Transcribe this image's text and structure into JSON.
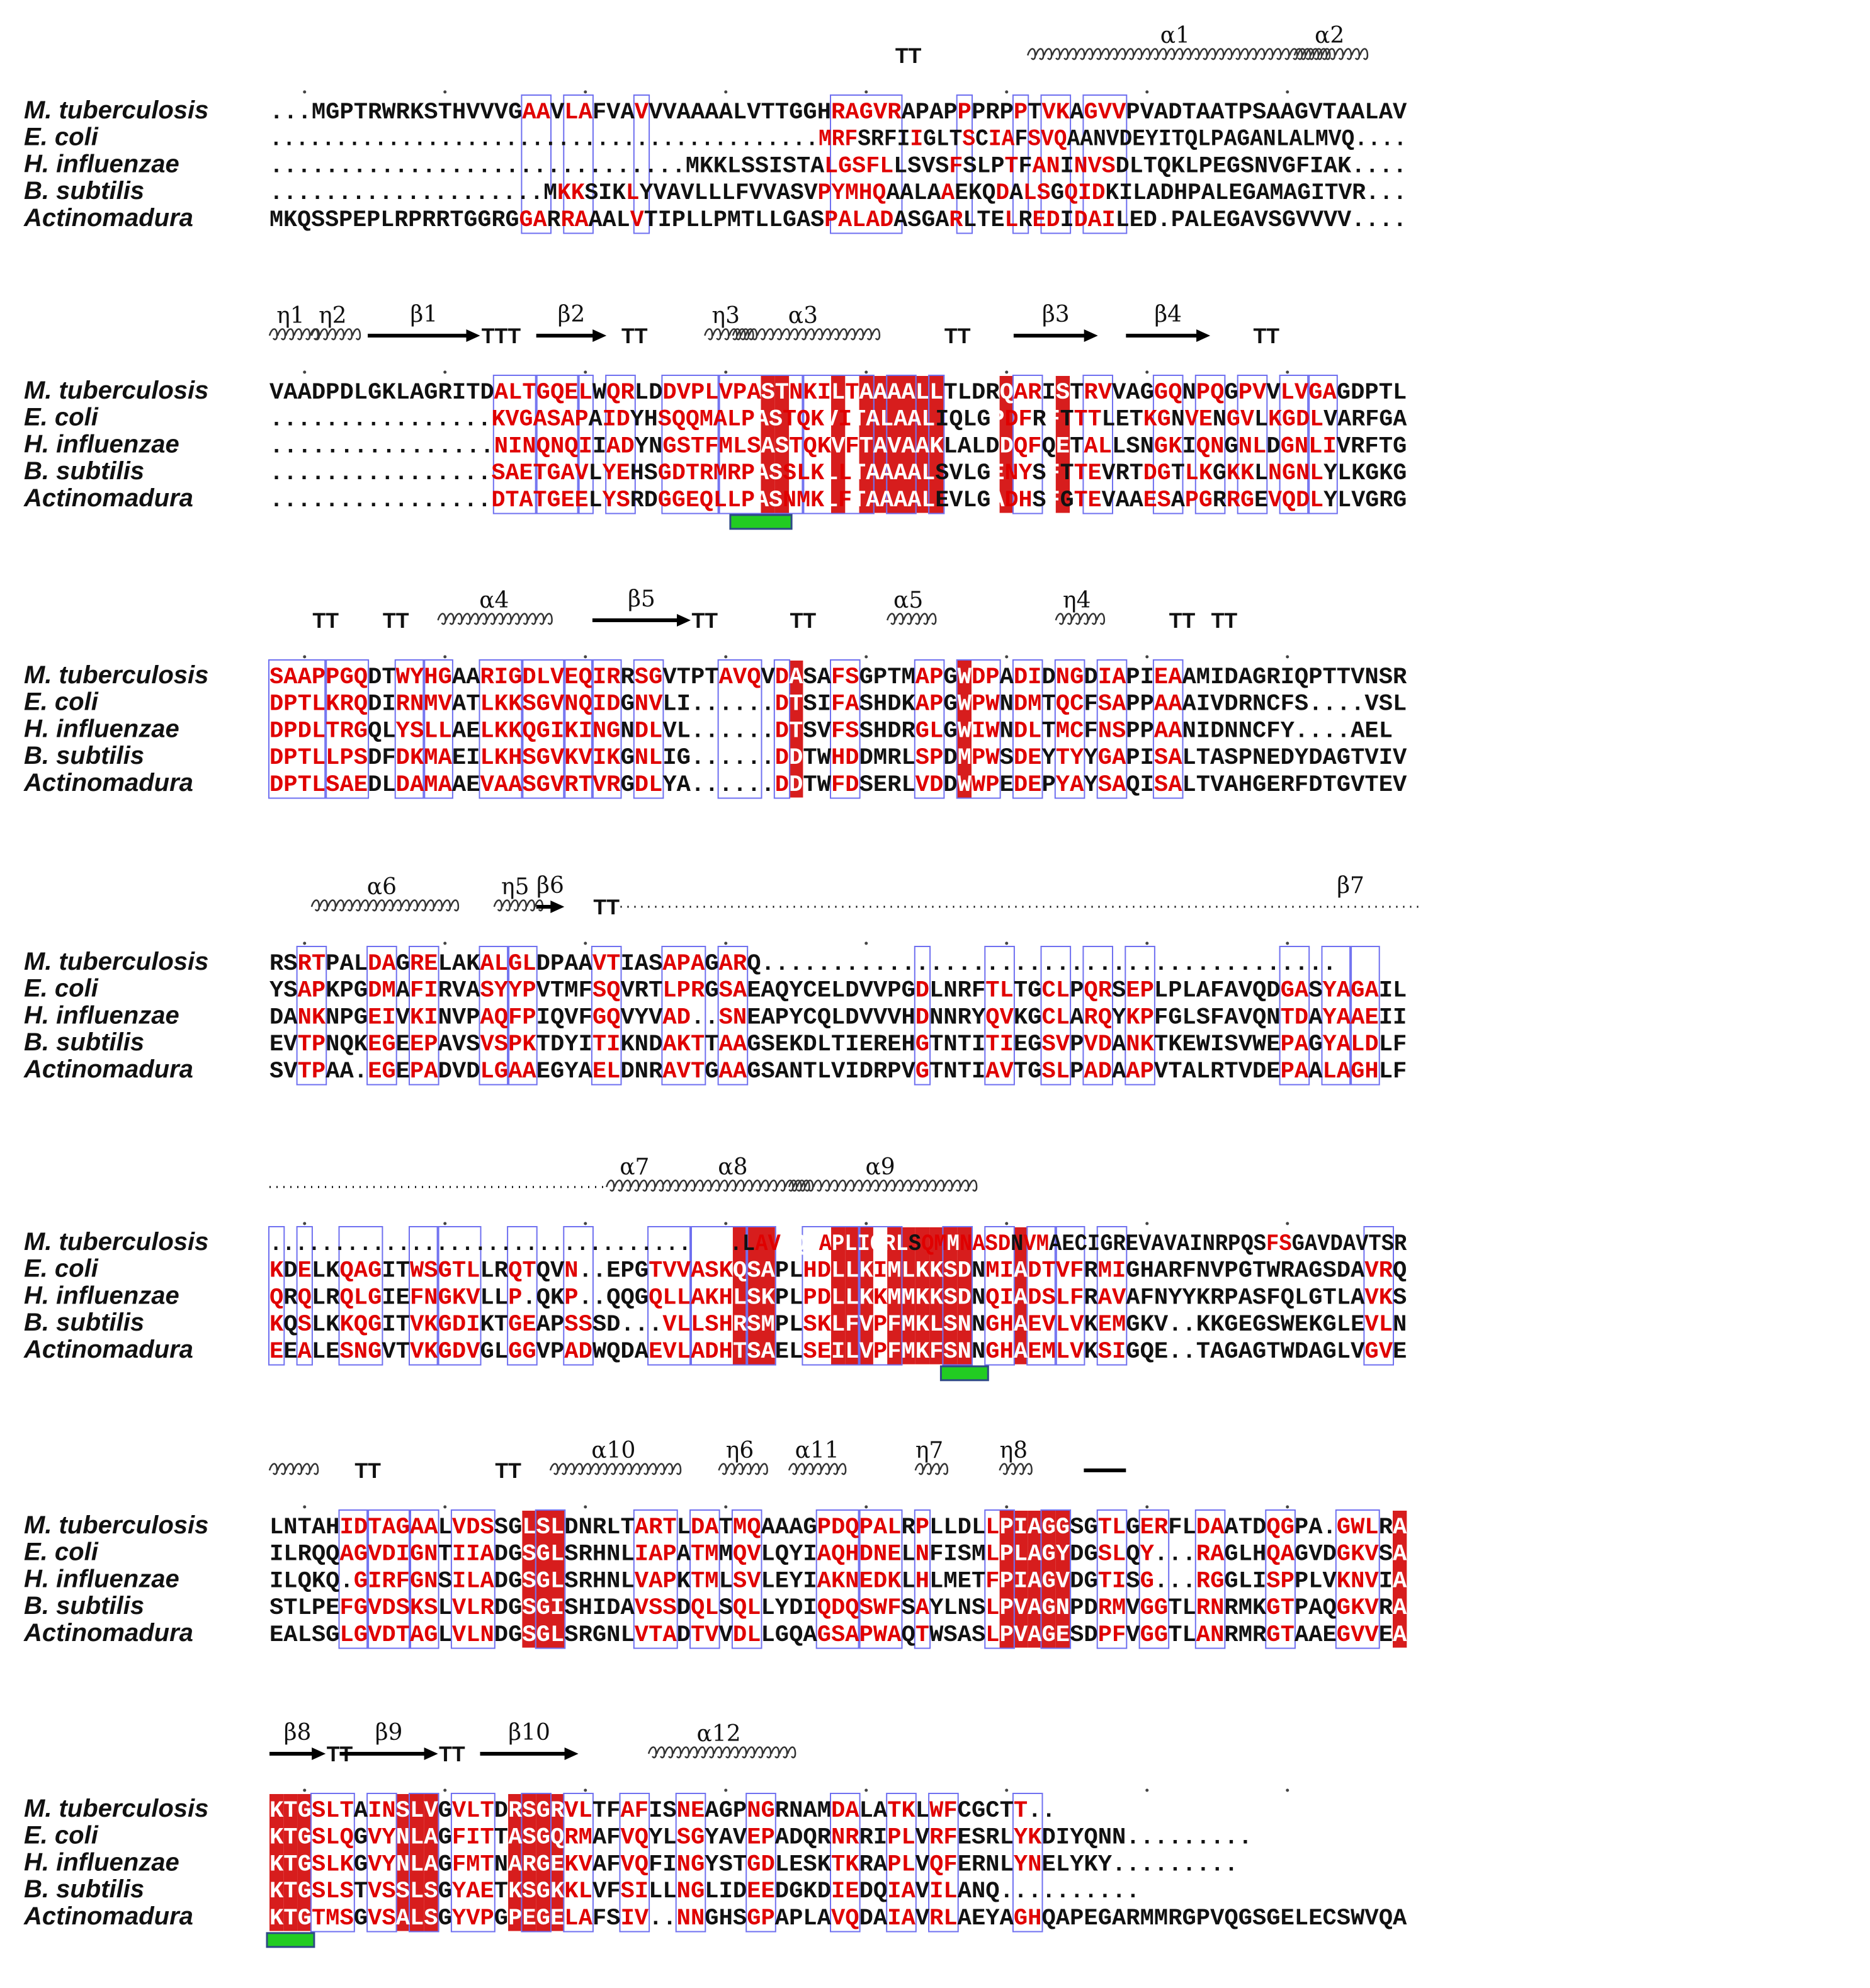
{
  "species": [
    "M. tuberculosis",
    "E. coli",
    "H. influenzae",
    "B. subtilis",
    "Actinomadura"
  ],
  "colors": {
    "identical_fill": "#d71d1d",
    "identical_text": "#ffffff",
    "similar_text": "#e00000",
    "normal_text": "#111111",
    "box": "#6f70f0",
    "motif_bar_fill": "#22cc22",
    "motif_bar_stroke": "#2e4a86"
  },
  "blocks": [
    {
      "sequences": [
        "...MGPTRWRKSTHVVVGAAVLAFVAVVVAAAALVTTGGHRAGVRAPAPPPRPPTVKAGVVPVADTAATPSAAGVTAALAV",
        "..........................................MRFSRFIIGLTSCIAFSVQAANVDEYITQLPAGANLALMVQ....",
        "..............................MKKLSSISTALGSFLLSVSFSLPTFANINVSDLTQKLPEGSNVGFIAK....",
        "....................MKKSIKLYVAVLLLFVVASVPYMHQAALAAEKQDALSGQIDKILADHPALEGAMAGITVR...",
        "MKQSSPEPLRPRRTGGRGGARRAAALVTIPLLPMTLLGASPALADASGARLTELREDIDAILED.PALEGAVSGVVVV...."
      ],
      "ss": [
        {
          "type": "helix",
          "label": "α1"
        },
        {
          "type": "turn",
          "label": "TT"
        },
        {
          "type": "helix",
          "label": "α2"
        }
      ]
    },
    {
      "sequences": [
        "VAADPDLGKLAGRITDALTGQELWQRLDDVPLVPASTNKILTAAAALLTLDRQARISTRVVAGGQNPQGPVVLVGAGDPTL",
        "................KVGASAPAIDYHSQQMALPASTQKVITALAALIQLGPDFRFTTTLETKGNVENGVLKGDLVARFGA",
        "................NINQNQIIADYNGSTFMLSASTQKVFTAVAAKLALDDQFQETALLSNGKIQNGNLDGNLIVRFTG",
        "................SAETGAVLYEHSGDTRMRPASSLKLLTAAAALSVLGENYSFTTEVRTDGTLKGKKLNGNLYLKGKG",
        "................DTATGEELYSRDGGEQLLPASNMKLFTAAAALEVLGADHSFGTEVAAESAPGRRGEVQDLYLVGRG"
      ],
      "ss": [
        {
          "type": "helix",
          "label": "η1"
        },
        {
          "type": "helix",
          "label": "η2"
        },
        {
          "type": "strand",
          "label": "β1"
        },
        {
          "type": "turn",
          "label": "TTT"
        },
        {
          "type": "strand",
          "label": "β2"
        },
        {
          "type": "turn",
          "label": "TT"
        },
        {
          "type": "helix",
          "label": "η3"
        },
        {
          "type": "helix",
          "label": "α3"
        },
        {
          "type": "turn",
          "label": "TT"
        },
        {
          "type": "strand",
          "label": "β3"
        },
        {
          "type": "strand",
          "label": "β4"
        },
        {
          "type": "turn",
          "label": "TT"
        }
      ]
    },
    {
      "sequences": [
        "SAAPPGQDTWYHGAARIGDLVEQIRRSGVTPTAVQVDASAFSGPTMAPGWDPADIDNGDIAPIEAAMIDAGRIQPTTVNSR",
        "DPTLKRQDIRNMVATLKKSGVNQIDGNVLI......DTSIFASHDKAPGWPWNDMTQCFSAPPAAAIVDRNCFS....VSL",
        "DPDLTRGQLYSLLAELKKQGIKINGNDLVL......DTSVFSSHDRGLGWIWNDLTMCFNSPPAANIDNNCFY....AEL",
        "DPTLLPSDFDKMAEILKHSGVKVIKGNLIG......DDTWHDDMRLSPDMPWSDEYTYYGAPISALTASPNEDYDAGTVIV",
        "DPTLSAEDLDAMAAEVAASGVRTVRGDLYA......DDTWFDSERLVDDWWPEDEPYAYSAQISALTVAHGERFDTGVTEV"
      ],
      "ss": [
        {
          "type": "turn",
          "label": "TT"
        },
        {
          "type": "turn",
          "label": "TT"
        },
        {
          "type": "helix",
          "label": "α4"
        },
        {
          "type": "strand",
          "label": "β5"
        },
        {
          "type": "turn",
          "label": "TT"
        },
        {
          "type": "turn",
          "label": "TT"
        },
        {
          "type": "helix",
          "label": "α5"
        },
        {
          "type": "helix",
          "label": "η4"
        },
        {
          "type": "turn",
          "label": "TT"
        },
        {
          "type": "turn",
          "label": "TT"
        }
      ]
    },
    {
      "sequences": [
        "RSRTPALDAGRELAKALGLDPAAVTIASAPAGARQ.........................................",
        "YSAPKPGDMAFIRVASYYPVTMFSQVRTLPRGSAEAQYCELDVVPGDLNRFTLTGCLPQRSEPLPLAFAVQDGASYAGAIL",
        "DANKNPGEIVKINVPAQFPIQVFGQVYVAD..SNEAPYCQLDVVVHDNNRYQVKGCLARQYKPFGLSFAVQNTDAYAAEII",
        "EVTPNQKEGEEPAVSVSPKTDYITIKNDAKTTAAGSEKDLTIEREHGTNTITIEGSVPVDANKTKEWISVWEPAGYALDLF",
        "SVTPAA.EGEPADVDLGAAEGYAELDNRAVTGAAGSANTLVIDRPVGTNTIAVTGSLPADAAPVTALRTVDEPAALAGHLF"
      ],
      "ss": [
        {
          "type": "helix",
          "label": "α6"
        },
        {
          "type": "helix",
          "label": "η5"
        },
        {
          "type": "strand",
          "label": "β6"
        },
        {
          "type": "turn",
          "label": "TT"
        },
        {
          "type": "strand",
          "label": "β7"
        }
      ]
    },
    {
      "sequences": [
        ".....................................LAVVQSAPLIQRLSQMMNASDNVMAECIGREVAVAINRPQSFSGAVDAVTSR",
        "KDELKQAGITWSGTLLRQTQVN..EPGTVVASKQSAPLHDLLKIMLKKSDNMIADTVFRMIGHARFNVPGTWRAGSDAVRQ",
        "QRQLRQLGIEFNGKVLLP.QKP..QQGQLLAKHLSKPLPDLLKKMMKKSDNQIADSLFRAVAFNYYKRPASFQLGTLAVKS",
        "KQSLKKQGITVKGDIKTGEAPSSSD...VLLSHRSMPLSKLFVPFMKLSNNGHAEVLVKEMGKV..KKGEGSWEKGLEVLN",
        "EEALESNGVTVKGDVGLGGVPADWQDAEVLADHTSAELSEILVPFMKFSNNGHAEMLVKSIGQE..TAGAGTWDAGLVGVE"
      ],
      "ss": [
        {
          "type": "strand",
          "label": ""
        },
        {
          "type": "helix",
          "label": "α7"
        },
        {
          "type": "helix",
          "label": "α8"
        },
        {
          "type": "helix",
          "label": "α9"
        }
      ]
    },
    {
      "sequences": [
        "LNTAHIDTAGAALVDSSGLSLDNRLTARTLDATMQAAAGPDQPALRPLLDLLPIAGGSGTLGERFLDAATDQGPA.GWLRA",
        "ILRQQAGVDIGNTIIADGSGLSRHNLIAPATMMQVLQYIAQHDNELNFISMLPLAGYDGSLQY...RAGLHQAGVDGKVSA",
        "ILQKQ.GIRFGNSILADGSGLSRHNLVAPKTMLSVLEYIAKNEDKLHLMETFPIAGVDGTISG...RGGLISPPLVKNVIA",
        "STLPEFGVDSKSLVLRDGSGISHIDAVSSDQLSQLLYDIQDQSWFSAYLNSLPVAGNPDRMVGGTLRNRMKGTPAQGKVRA",
        "EALSGLGVDTAGLVLNDGSGLSRGNLVTADTVVDLLGQAGSAPWAQTWSASLPVAGESDPFVGGTLANRMRGTAAEGVVEA"
      ],
      "ss": [
        {
          "type": "helix",
          "label": ""
        },
        {
          "type": "turn",
          "label": "TT"
        },
        {
          "type": "turn",
          "label": "TT"
        },
        {
          "type": "helix",
          "label": "α10"
        },
        {
          "type": "helix",
          "label": "η6"
        },
        {
          "type": "helix",
          "label": "α11"
        },
        {
          "type": "helix",
          "label": "η7"
        },
        {
          "type": "helix",
          "label": "η8"
        },
        {
          "type": "strand",
          "label": ""
        }
      ]
    },
    {
      "sequences": [
        "KTGSLTAINSLVGVLTDRSGRVLTFAFISNEAGPNGRNAMDALATKLWFCGCTT..",
        "KTGSLQGVYNLAGFITTASGQRMAFVQYLSGYAVEPADQRNRRIPLVRFESRLYKDIYQNN.........",
        "KTGSLKGVYNLAGFMTNARGEKVAFVQFINGYSTGDLESKTKRAPLVQFERNLYNELYKY.........",
        "KTGSLSTVSSLSGYAETKSGKKLVFSILLNGLIDEEDGKDIEDQIAVILANQ..........",
        "KTGTMSGVSALSGYVPGPEGELAFSIV..NNGHSGPAPLAVQDAIAVRLAEYAGHQAPEGARMMRGPVQGSGELECSWVQA"
      ],
      "ss": [
        {
          "type": "strand",
          "label": "β8"
        },
        {
          "type": "turn",
          "label": "TT"
        },
        {
          "type": "strand",
          "label": "β9"
        },
        {
          "type": "turn",
          "label": "TT"
        },
        {
          "type": "strand",
          "label": "β10"
        },
        {
          "type": "helix",
          "label": "α12"
        }
      ]
    }
  ]
}
